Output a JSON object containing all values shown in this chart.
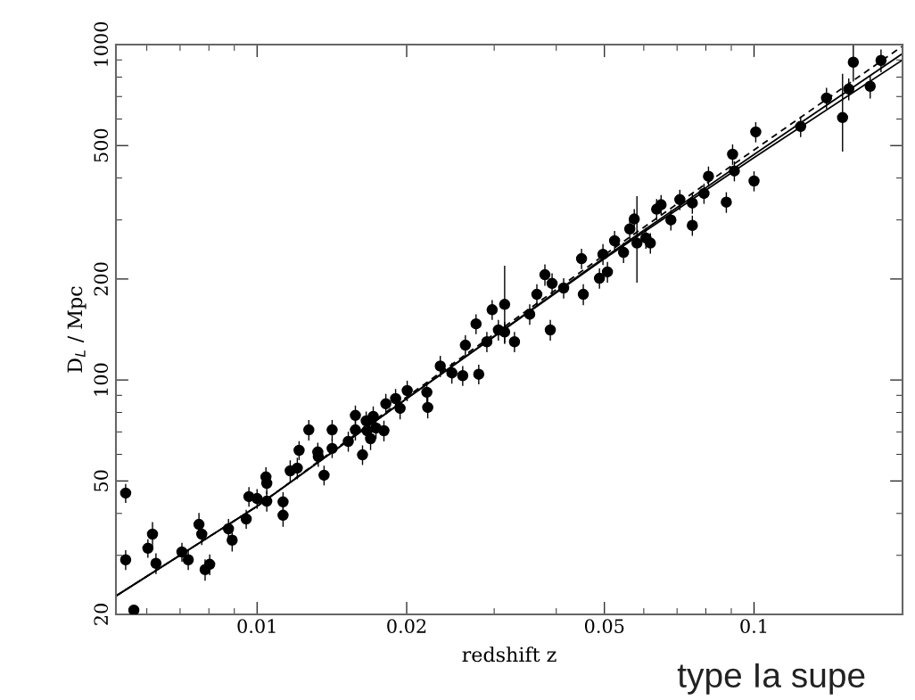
{
  "chart_data": {
    "type": "scatter",
    "xlabel": "redshift z",
    "ylabel": "D$_{L}$ / Mpc",
    "log": "xy",
    "grid": false,
    "marker": "circle",
    "xlim": [
      0.0052,
      0.199
    ],
    "ylim": [
      20,
      1000
    ],
    "xticks": [
      0.01,
      0.02,
      0.05,
      0.1
    ],
    "yticks": [
      20,
      50,
      100,
      200,
      500,
      1000
    ],
    "annotations": [
      "type Ia supe"
    ],
    "series": [
      {
        "color": "#000000",
        "x": [
          0.00544,
          0.00544,
          0.00565,
          0.00603,
          0.00616,
          0.00626,
          0.00706,
          0.00727,
          0.00764,
          0.00774,
          0.00786,
          0.00803,
          0.00876,
          0.00891,
          0.00951,
          0.00963,
          0.01,
          0.01042,
          0.01046,
          0.01046,
          0.01128,
          0.01128,
          0.01166,
          0.01205,
          0.01215,
          0.01271,
          0.01325,
          0.01328,
          0.01364,
          0.01416,
          0.01416,
          0.01526,
          0.01577,
          0.01577,
          0.0163,
          0.01658,
          0.01665,
          0.01692,
          0.01713,
          0.01735,
          0.018,
          0.01816,
          0.019,
          0.0194,
          0.02005,
          0.02196,
          0.02205,
          0.02337,
          0.02466,
          0.02593,
          0.02625,
          0.02793,
          0.02758,
          0.029,
          0.02972,
          0.03059,
          0.03149,
          0.03149,
          0.03296,
          0.03537,
          0.03656,
          0.03795,
          0.03923,
          0.03891,
          0.04139,
          0.04497,
          0.04534,
          0.04886,
          0.04966,
          0.0507,
          0.05241,
          0.05463,
          0.05623,
          0.05741,
          0.05813,
          0.06059,
          0.06186,
          0.06368,
          0.06501,
          0.06803,
          0.07091,
          0.07514,
          0.07514,
          0.07931,
          0.08097,
          0.08795,
          0.09054,
          0.09129,
          0.1,
          0.1008,
          0.1241,
          0.1399,
          0.1507,
          0.1551,
          0.1584,
          0.1713,
          0.1801
        ],
        "values": [
          46.0,
          29.1,
          20.6,
          31.5,
          34.7,
          28.4,
          30.7,
          29.1,
          37.1,
          34.7,
          27.2,
          28.2,
          36.0,
          33.3,
          38.5,
          44.9,
          44.3,
          51.4,
          49.2,
          43.5,
          43.3,
          39.5,
          53.6,
          54.6,
          61.7,
          71.0,
          61.0,
          59.1,
          52.0,
          71.0,
          62.5,
          65.6,
          78.4,
          71.0,
          59.8,
          75.5,
          70.6,
          66.8,
          77.9,
          71.9,
          70.6,
          84.9,
          88.0,
          82.3,
          93.0,
          91.9,
          82.8,
          110,
          105,
          103,
          127,
          104,
          147,
          130,
          162,
          141,
          168,
          139,
          130,
          157,
          180,
          206,
          194,
          141,
          188,
          230,
          180,
          201,
          237,
          210,
          260,
          240,
          282,
          302,
          256,
          265,
          256,
          323,
          333,
          300,
          345,
          337,
          289,
          360,
          405,
          339,
          471,
          420,
          392,
          549,
          570,
          693,
          606,
          737,
          886,
          751,
          897
        ],
        "errors": [
          3,
          2,
          null,
          2,
          3,
          2,
          2,
          2,
          3,
          2.5,
          2,
          2,
          2.5,
          2.5,
          2.5,
          3,
          3,
          3.5,
          3.5,
          3,
          3,
          3,
          4,
          4,
          4,
          5,
          4,
          4,
          3.5,
          5,
          4,
          4.5,
          5.5,
          5,
          4,
          5,
          5,
          5,
          5.5,
          5,
          5,
          6,
          6,
          6,
          6.5,
          6.5,
          6,
          8,
          7.5,
          7,
          9,
          7,
          10,
          9,
          11,
          10,
          [
            128,
            219
          ],
          10,
          9,
          11,
          13,
          15,
          14,
          10,
          13,
          16,
          13,
          14,
          17,
          15,
          18,
          17,
          20,
          21,
          [
            195,
            353
          ],
          19,
          18,
          23,
          23,
          21,
          24,
          24,
          20,
          25,
          28,
          24,
          33,
          29,
          27,
          38,
          40,
          50,
          [
            480,
            818
          ],
          55,
          110,
          60,
          70
        ]
      },
      {
        "type": "line",
        "color": "#000000",
        "line_style": "solid",
        "marker": "none",
        "x": [
          0.0052,
          0.01,
          0.02,
          0.05,
          0.1,
          0.199
        ],
        "values": [
          22.7,
          42,
          88,
          230,
          460,
          900
        ]
      },
      {
        "type": "line",
        "color": "#000000",
        "line_style": "solid",
        "marker": "none",
        "x": [
          0.0052,
          0.01,
          0.02,
          0.05,
          0.1,
          0.199
        ],
        "values": [
          22.7,
          42,
          88,
          232,
          470,
          940
        ]
      },
      {
        "type": "line",
        "color": "#000000",
        "line_style": "dashed",
        "marker": "none",
        "x": [
          0.0052,
          0.01,
          0.02,
          0.05,
          0.1,
          0.199
        ],
        "values": [
          22.7,
          42,
          89,
          236,
          485,
          990
        ]
      }
    ]
  }
}
